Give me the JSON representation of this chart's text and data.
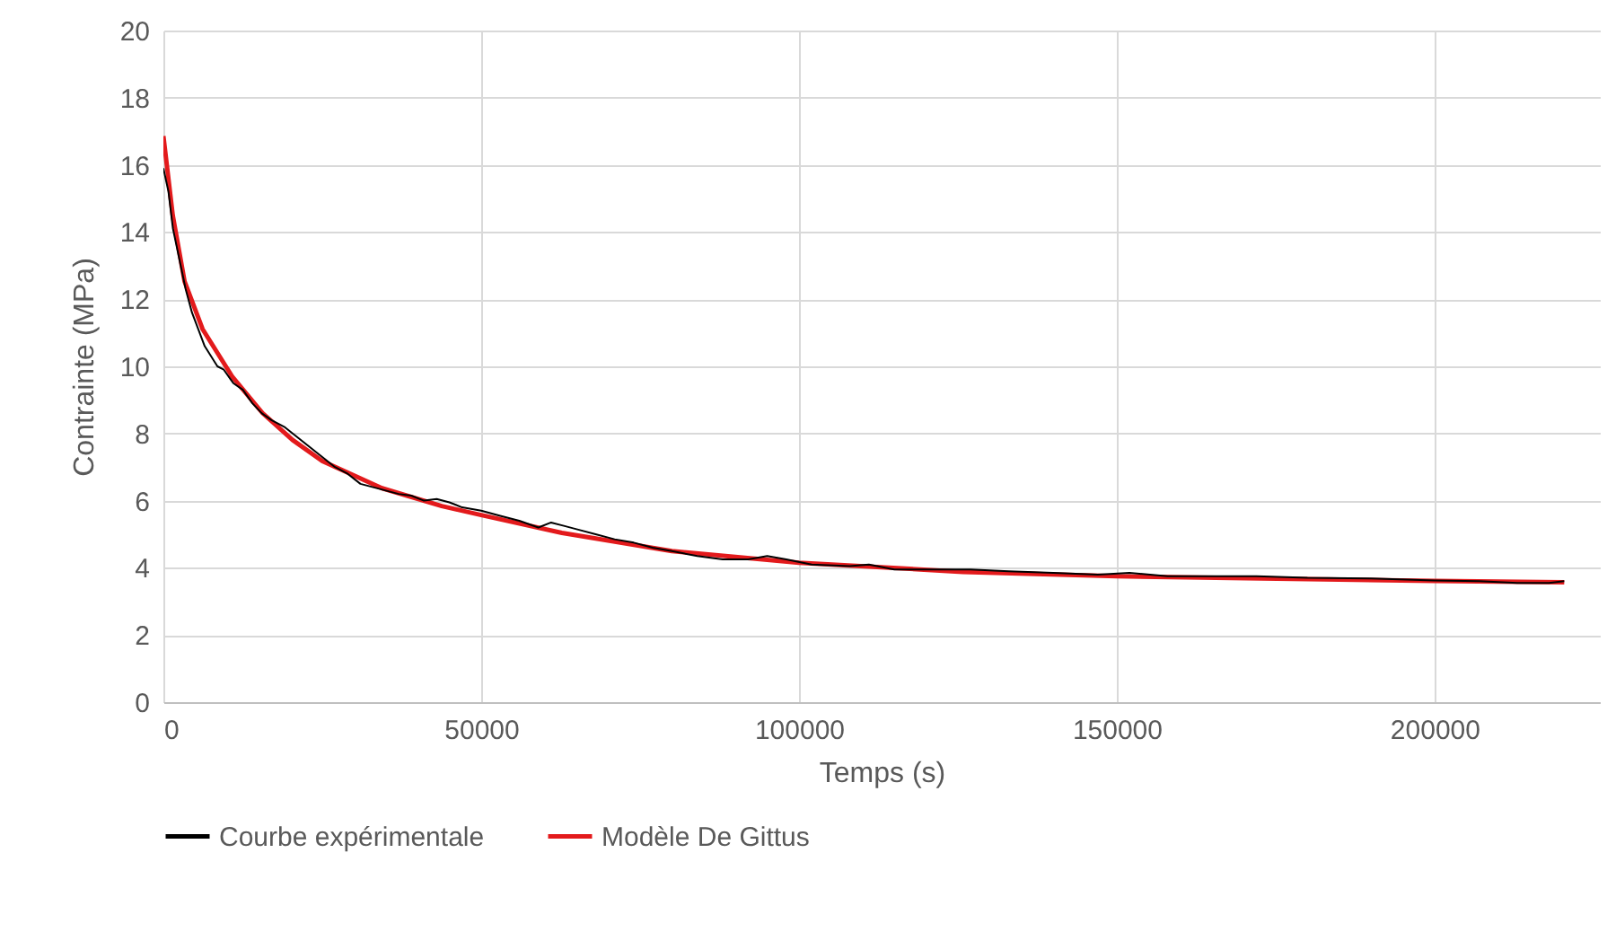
{
  "chart_data": {
    "type": "line",
    "xlabel": "Temps (s)",
    "ylabel": "Contrainte (MPa)",
    "xlim": [
      0,
      226000
    ],
    "xticks": [
      0,
      50000,
      100000,
      150000,
      200000
    ],
    "ylim": [
      0,
      20
    ],
    "yticks": [
      0,
      2,
      4,
      6,
      8,
      10,
      12,
      14,
      16,
      18,
      20
    ],
    "grid": true,
    "legend": "bottom",
    "line_style": "solid",
    "marker": "none",
    "series": [
      {
        "name": "Courbe expérimentale",
        "color": "#000000",
        "x": [
          0,
          800,
          1500,
          2500,
          3500,
          4500,
          5500,
          6500,
          7500,
          8500,
          9500,
          11000,
          12500,
          14000,
          15500,
          17000,
          19000,
          21000,
          23000,
          25000,
          27000,
          29000,
          31000,
          33000,
          35000,
          37000,
          39000,
          41000,
          43000,
          45000,
          47000,
          50000,
          53000,
          56000,
          59000,
          61000,
          63000,
          65000,
          68000,
          71000,
          74000,
          77000,
          80000,
          84000,
          88000,
          92000,
          95000,
          98000,
          102000,
          108000,
          111000,
          115000,
          120000,
          127000,
          133000,
          140000,
          147000,
          152000,
          158000,
          165000,
          172000,
          180000,
          190000,
          200000,
          207000,
          213000,
          218000,
          220400
        ],
        "values": [
          15.9,
          15.2,
          14.1,
          13.2,
          12.3,
          11.6,
          11.1,
          10.6,
          10.3,
          10.0,
          9.9,
          9.5,
          9.3,
          8.9,
          8.6,
          8.4,
          8.2,
          7.9,
          7.6,
          7.3,
          7.0,
          6.8,
          6.5,
          6.4,
          6.3,
          6.2,
          6.15,
          6.0,
          6.05,
          5.95,
          5.8,
          5.7,
          5.55,
          5.4,
          5.2,
          5.35,
          5.25,
          5.15,
          5.0,
          4.85,
          4.75,
          4.6,
          4.5,
          4.35,
          4.25,
          4.25,
          4.35,
          4.25,
          4.1,
          4.05,
          4.1,
          3.95,
          3.95,
          3.95,
          3.9,
          3.85,
          3.8,
          3.85,
          3.75,
          3.75,
          3.75,
          3.7,
          3.68,
          3.62,
          3.6,
          3.55,
          3.55,
          3.6
        ]
      },
      {
        "name": "Modèle De Gittus",
        "color": "#e31a1c",
        "x": [
          0,
          1470,
          3330,
          6160,
          10880,
          15590,
          20300,
          25000,
          34400,
          43800,
          50000,
          62700,
          80000,
          100000,
          125800,
          150000,
          172800,
          200000,
          220400
        ],
        "values": [
          16.86,
          14.5,
          12.53,
          11.11,
          9.68,
          8.61,
          7.81,
          7.18,
          6.37,
          5.84,
          5.57,
          5.04,
          4.5,
          4.15,
          3.88,
          3.75,
          3.68,
          3.61,
          3.57
        ]
      }
    ]
  }
}
